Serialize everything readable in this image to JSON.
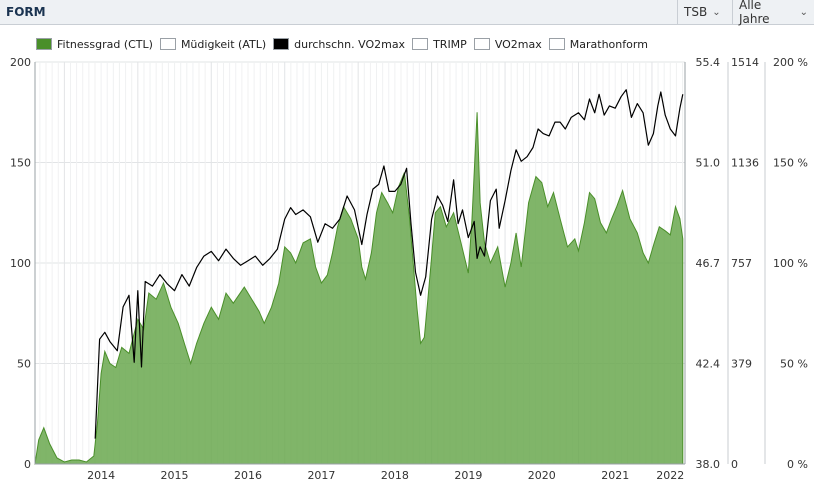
{
  "header": {
    "title": "FORM",
    "dropdown_tsb": "TSB",
    "dropdown_range": "Alle Jahre"
  },
  "legend": [
    {
      "label": "Fitnessgrad (CTL)",
      "color": "#4a8f2a"
    },
    {
      "label": "Müdigkeit (ATL)",
      "color": "#ffffff"
    },
    {
      "label": "durchschn. VO2max",
      "color": "#000000"
    },
    {
      "label": "TRIMP",
      "color": "#ffffff"
    },
    {
      "label": "VO2max",
      "color": "#ffffff"
    },
    {
      "label": "Marathonform",
      "color": "#ffffff"
    }
  ],
  "chart_data": {
    "type": "area",
    "x_ticks": [
      "2014",
      "2015",
      "2016",
      "2017",
      "2018",
      "2019",
      "2020",
      "2021",
      "2022"
    ],
    "y_left_ticks": [
      "0",
      "50",
      "100",
      "150",
      "200"
    ],
    "y_vo2_ticks": [
      "38.0",
      "42.4",
      "46.7",
      "51.0",
      "55.4"
    ],
    "y_trimp_ticks": [
      "0",
      "379",
      "757",
      "1136",
      "1514"
    ],
    "y_pct_ticks": [
      "0 %",
      "50 %",
      "100 %",
      "150 %",
      "200 %"
    ],
    "ylim_left": [
      0,
      200
    ],
    "ylim_vo2": [
      38.0,
      55.4
    ],
    "grid": true,
    "series": [
      {
        "name": "Fitnessgrad (CTL)",
        "color": "#4a8f2a",
        "points": [
          [
            2013.6,
            0
          ],
          [
            2013.65,
            12
          ],
          [
            2013.72,
            18
          ],
          [
            2013.8,
            10
          ],
          [
            2013.9,
            3
          ],
          [
            2014.0,
            1
          ],
          [
            2014.1,
            2
          ],
          [
            2014.2,
            2
          ],
          [
            2014.3,
            1
          ],
          [
            2014.4,
            4
          ],
          [
            2014.45,
            20
          ],
          [
            2014.5,
            45
          ],
          [
            2014.55,
            56
          ],
          [
            2014.62,
            50
          ],
          [
            2014.7,
            48
          ],
          [
            2014.78,
            58
          ],
          [
            2014.88,
            55
          ],
          [
            2015.0,
            72
          ],
          [
            2015.08,
            67
          ],
          [
            2015.15,
            85
          ],
          [
            2015.25,
            82
          ],
          [
            2015.35,
            90
          ],
          [
            2015.45,
            78
          ],
          [
            2015.55,
            70
          ],
          [
            2015.65,
            58
          ],
          [
            2015.72,
            50
          ],
          [
            2015.8,
            60
          ],
          [
            2015.9,
            70
          ],
          [
            2016.0,
            78
          ],
          [
            2016.1,
            72
          ],
          [
            2016.2,
            85
          ],
          [
            2016.3,
            80
          ],
          [
            2016.45,
            88
          ],
          [
            2016.55,
            82
          ],
          [
            2016.65,
            76
          ],
          [
            2016.72,
            70
          ],
          [
            2016.82,
            78
          ],
          [
            2016.92,
            90
          ],
          [
            2017.0,
            108
          ],
          [
            2017.08,
            105
          ],
          [
            2017.15,
            100
          ],
          [
            2017.25,
            110
          ],
          [
            2017.35,
            112
          ],
          [
            2017.42,
            98
          ],
          [
            2017.5,
            90
          ],
          [
            2017.58,
            94
          ],
          [
            2017.65,
            105
          ],
          [
            2017.72,
            118
          ],
          [
            2017.8,
            128
          ],
          [
            2017.9,
            122
          ],
          [
            2018.0,
            112
          ],
          [
            2018.05,
            98
          ],
          [
            2018.1,
            92
          ],
          [
            2018.18,
            105
          ],
          [
            2018.25,
            125
          ],
          [
            2018.32,
            135
          ],
          [
            2018.4,
            130
          ],
          [
            2018.47,
            125
          ],
          [
            2018.55,
            138
          ],
          [
            2018.63,
            145
          ],
          [
            2018.7,
            122
          ],
          [
            2018.75,
            100
          ],
          [
            2018.8,
            78
          ],
          [
            2018.85,
            60
          ],
          [
            2018.9,
            63
          ],
          [
            2018.95,
            82
          ],
          [
            2019.0,
            103
          ],
          [
            2019.05,
            125
          ],
          [
            2019.12,
            128
          ],
          [
            2019.2,
            118
          ],
          [
            2019.3,
            125
          ],
          [
            2019.4,
            110
          ],
          [
            2019.5,
            95
          ],
          [
            2019.55,
            122
          ],
          [
            2019.62,
            175
          ],
          [
            2019.66,
            130
          ],
          [
            2019.72,
            110
          ],
          [
            2019.8,
            100
          ],
          [
            2019.9,
            108
          ],
          [
            2020.0,
            88
          ],
          [
            2020.08,
            100
          ],
          [
            2020.15,
            115
          ],
          [
            2020.22,
            98
          ],
          [
            2020.32,
            130
          ],
          [
            2020.42,
            143
          ],
          [
            2020.5,
            140
          ],
          [
            2020.58,
            128
          ],
          [
            2020.66,
            135
          ],
          [
            2020.75,
            122
          ],
          [
            2020.85,
            108
          ],
          [
            2020.95,
            112
          ],
          [
            2021.0,
            106
          ],
          [
            2021.08,
            120
          ],
          [
            2021.15,
            135
          ],
          [
            2021.22,
            132
          ],
          [
            2021.3,
            120
          ],
          [
            2021.38,
            115
          ],
          [
            2021.45,
            122
          ],
          [
            2021.52,
            128
          ],
          [
            2021.6,
            136
          ],
          [
            2021.7,
            122
          ],
          [
            2021.8,
            115
          ],
          [
            2021.88,
            105
          ],
          [
            2021.95,
            100
          ],
          [
            2022.03,
            110
          ],
          [
            2022.1,
            118
          ],
          [
            2022.18,
            116
          ],
          [
            2022.25,
            114
          ],
          [
            2022.32,
            128
          ],
          [
            2022.38,
            122
          ],
          [
            2022.42,
            112
          ]
        ]
      },
      {
        "name": "durchschn. VO2max",
        "color": "#000000",
        "points": [
          [
            2014.42,
            39.1
          ],
          [
            2014.48,
            43.4
          ],
          [
            2014.55,
            43.7
          ],
          [
            2014.62,
            43.3
          ],
          [
            2014.72,
            42.9
          ],
          [
            2014.8,
            44.8
          ],
          [
            2014.88,
            45.3
          ],
          [
            2014.95,
            42.4
          ],
          [
            2015.0,
            45.5
          ],
          [
            2015.05,
            42.2
          ],
          [
            2015.1,
            45.9
          ],
          [
            2015.2,
            45.7
          ],
          [
            2015.3,
            46.2
          ],
          [
            2015.4,
            45.8
          ],
          [
            2015.5,
            45.5
          ],
          [
            2015.6,
            46.2
          ],
          [
            2015.7,
            45.7
          ],
          [
            2015.8,
            46.5
          ],
          [
            2015.9,
            47.0
          ],
          [
            2016.0,
            47.2
          ],
          [
            2016.1,
            46.8
          ],
          [
            2016.2,
            47.3
          ],
          [
            2016.3,
            46.9
          ],
          [
            2016.4,
            46.6
          ],
          [
            2016.5,
            46.8
          ],
          [
            2016.6,
            47.0
          ],
          [
            2016.7,
            46.6
          ],
          [
            2016.8,
            46.9
          ],
          [
            2016.9,
            47.3
          ],
          [
            2017.0,
            48.6
          ],
          [
            2017.08,
            49.1
          ],
          [
            2017.15,
            48.8
          ],
          [
            2017.25,
            49.0
          ],
          [
            2017.35,
            48.7
          ],
          [
            2017.45,
            47.6
          ],
          [
            2017.55,
            48.4
          ],
          [
            2017.65,
            48.2
          ],
          [
            2017.75,
            48.6
          ],
          [
            2017.85,
            49.6
          ],
          [
            2017.95,
            49.0
          ],
          [
            2018.05,
            47.5
          ],
          [
            2018.12,
            48.8
          ],
          [
            2018.2,
            49.9
          ],
          [
            2018.28,
            50.1
          ],
          [
            2018.35,
            50.9
          ],
          [
            2018.42,
            49.8
          ],
          [
            2018.5,
            49.8
          ],
          [
            2018.58,
            50.1
          ],
          [
            2018.66,
            50.8
          ],
          [
            2018.72,
            48.4
          ],
          [
            2018.78,
            46.3
          ],
          [
            2018.85,
            45.3
          ],
          [
            2018.92,
            46.1
          ],
          [
            2019.0,
            48.6
          ],
          [
            2019.08,
            49.6
          ],
          [
            2019.15,
            49.2
          ],
          [
            2019.22,
            48.5
          ],
          [
            2019.3,
            50.3
          ],
          [
            2019.36,
            48.4
          ],
          [
            2019.42,
            49.0
          ],
          [
            2019.5,
            47.8
          ],
          [
            2019.58,
            48.5
          ],
          [
            2019.62,
            46.9
          ],
          [
            2019.66,
            47.4
          ],
          [
            2019.72,
            47.0
          ],
          [
            2019.8,
            49.4
          ],
          [
            2019.88,
            49.9
          ],
          [
            2019.92,
            48.2
          ],
          [
            2020.0,
            49.4
          ],
          [
            2020.08,
            50.7
          ],
          [
            2020.15,
            51.6
          ],
          [
            2020.22,
            51.1
          ],
          [
            2020.3,
            51.3
          ],
          [
            2020.38,
            51.7
          ],
          [
            2020.45,
            52.5
          ],
          [
            2020.52,
            52.3
          ],
          [
            2020.6,
            52.2
          ],
          [
            2020.68,
            52.8
          ],
          [
            2020.75,
            52.8
          ],
          [
            2020.82,
            52.5
          ],
          [
            2020.9,
            53.0
          ],
          [
            2021.0,
            53.2
          ],
          [
            2021.08,
            52.9
          ],
          [
            2021.15,
            53.8
          ],
          [
            2021.22,
            53.2
          ],
          [
            2021.28,
            54.0
          ],
          [
            2021.35,
            53.1
          ],
          [
            2021.42,
            53.5
          ],
          [
            2021.5,
            53.4
          ],
          [
            2021.58,
            53.9
          ],
          [
            2021.65,
            54.2
          ],
          [
            2021.72,
            53.0
          ],
          [
            2021.8,
            53.6
          ],
          [
            2021.88,
            53.2
          ],
          [
            2021.95,
            51.8
          ],
          [
            2022.02,
            52.3
          ],
          [
            2022.08,
            53.5
          ],
          [
            2022.12,
            54.1
          ],
          [
            2022.18,
            53.1
          ],
          [
            2022.25,
            52.5
          ],
          [
            2022.32,
            52.2
          ],
          [
            2022.38,
            53.4
          ],
          [
            2022.42,
            54.0
          ]
        ]
      }
    ]
  }
}
